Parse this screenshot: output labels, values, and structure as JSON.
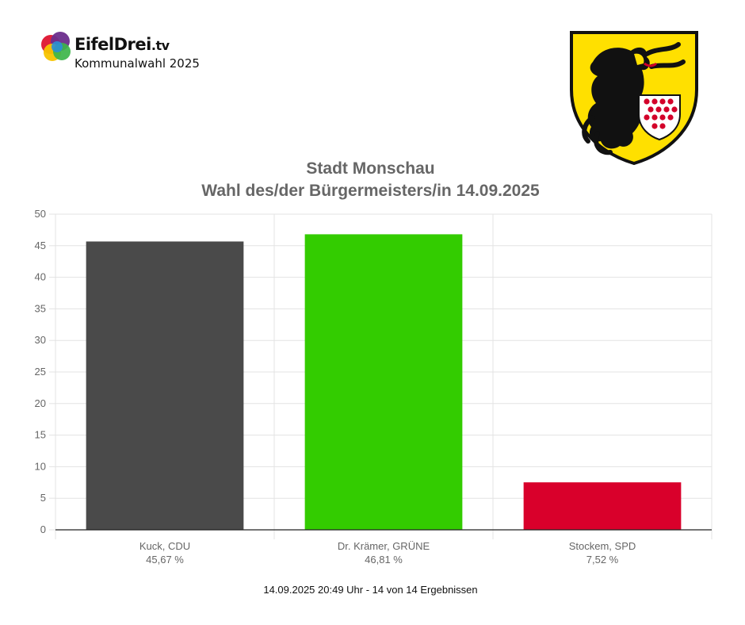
{
  "brand": {
    "name": "EifelDrei",
    "tld": ".tv",
    "subtitle": "Kommunalwahl 2025",
    "logo_colors": [
      "#e0203a",
      "#f7c400",
      "#2a8fd6",
      "#3db54a",
      "#6b2d8c"
    ]
  },
  "crest": {
    "icon": "coat-of-arms-monschau-lion",
    "colors": {
      "field": "#ffe000",
      "lion": "#111111",
      "shield": "#ffffff",
      "dots": "#d3002a"
    }
  },
  "chart_data": {
    "type": "bar",
    "title": "Stadt Monschau",
    "subtitle": "Wahl des/der Bürgermeisters/in 14.09.2025",
    "categories": [
      "Kuck, CDU",
      "Dr. Krämer, GRÜNE",
      "Stockem, SPD"
    ],
    "value_labels": [
      "45,67 %",
      "46,81 %",
      "7,52 %"
    ],
    "values": [
      45.67,
      46.81,
      7.52
    ],
    "colors": [
      "#4a4a4a",
      "#33cc00",
      "#d9002b"
    ],
    "ylim": [
      0,
      50
    ],
    "yticks": [
      "0",
      "5",
      "10",
      "15",
      "20",
      "25",
      "30",
      "35",
      "40",
      "45",
      "50"
    ],
    "grid": true,
    "xlabel": "",
    "ylabel": ""
  },
  "footer": "14.09.2025 20:49 Uhr - 14 von 14 Ergebnissen"
}
